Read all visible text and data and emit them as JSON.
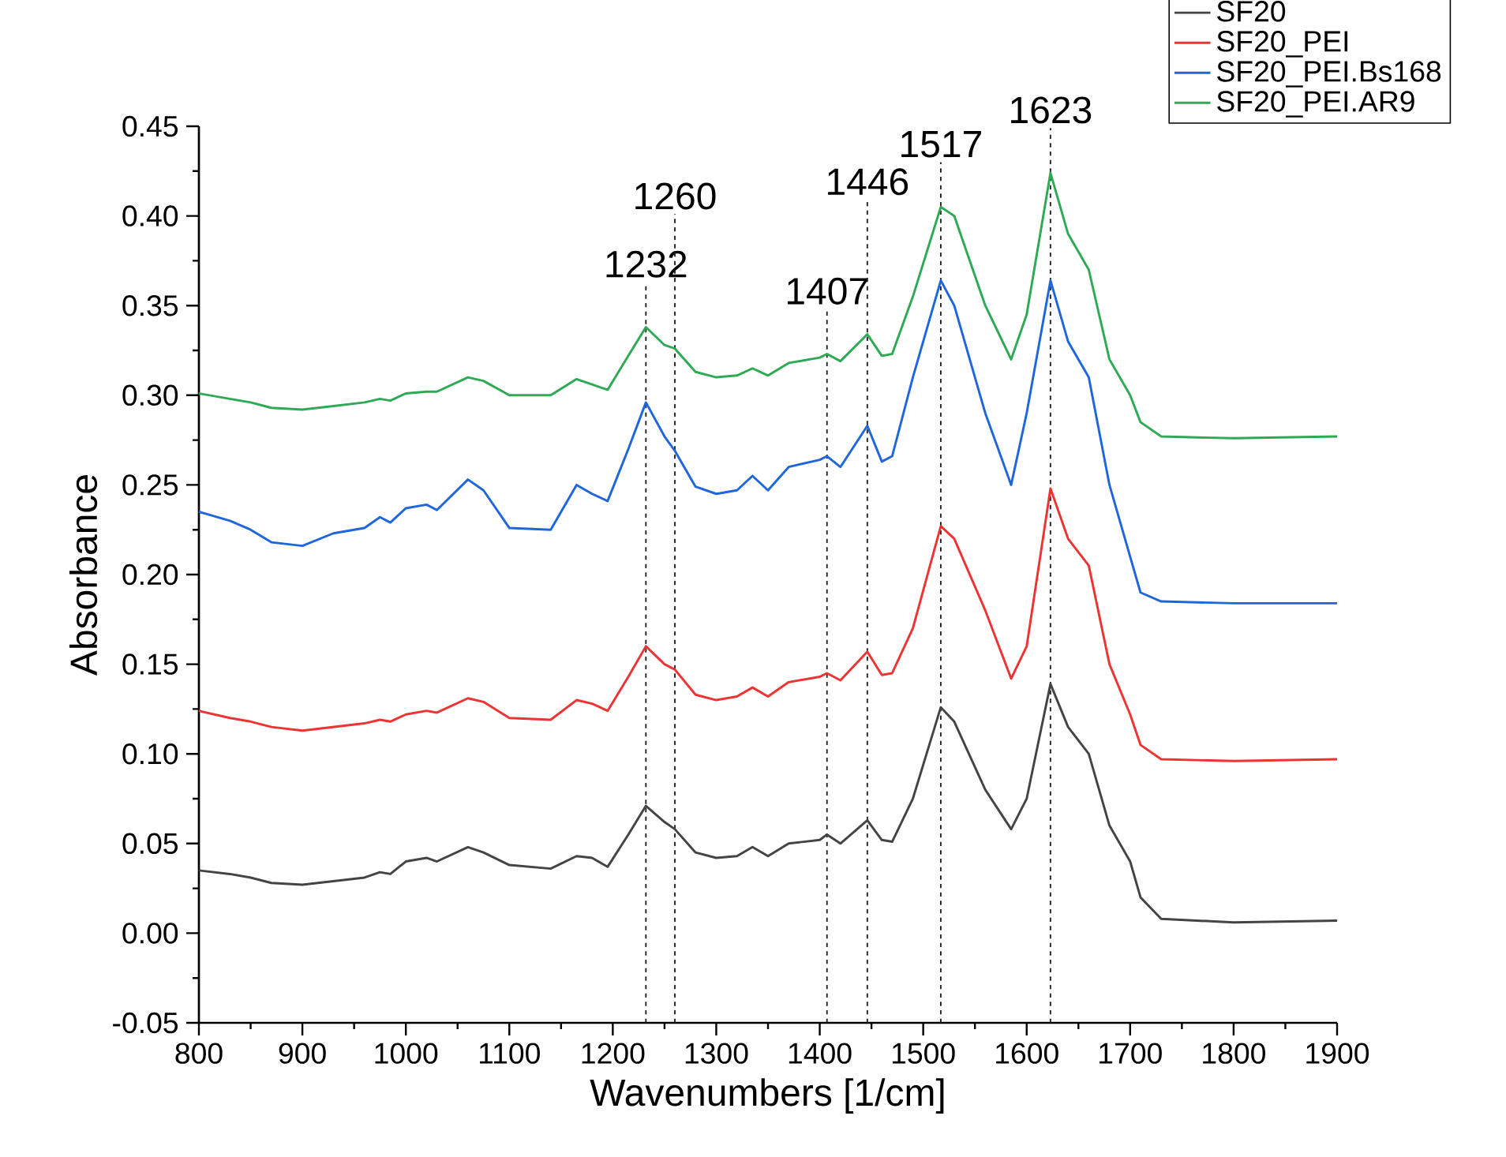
{
  "chart_data": {
    "type": "line",
    "xlabel": "Wavenumbers [1/cm]",
    "ylabel": "Absorbance",
    "x": [
      800,
      830,
      850,
      870,
      900,
      930,
      960,
      975,
      985,
      1000,
      1020,
      1030,
      1060,
      1075,
      1100,
      1140,
      1165,
      1180,
      1195,
      1215,
      1232,
      1250,
      1260,
      1280,
      1300,
      1320,
      1335,
      1350,
      1370,
      1400,
      1407,
      1420,
      1446,
      1460,
      1470,
      1490,
      1517,
      1530,
      1560,
      1585,
      1600,
      1623,
      1640,
      1660,
      1680,
      1700,
      1710,
      1730,
      1800,
      1900
    ],
    "series": [
      {
        "name": "SF20",
        "color": "#444444",
        "values": [
          0.035,
          0.033,
          0.031,
          0.028,
          0.027,
          0.029,
          0.031,
          0.034,
          0.033,
          0.04,
          0.042,
          0.04,
          0.048,
          0.045,
          0.038,
          0.036,
          0.043,
          0.042,
          0.037,
          0.055,
          0.071,
          0.062,
          0.058,
          0.045,
          0.042,
          0.043,
          0.048,
          0.043,
          0.05,
          0.052,
          0.055,
          0.05,
          0.063,
          0.052,
          0.051,
          0.075,
          0.126,
          0.118,
          0.08,
          0.058,
          0.075,
          0.139,
          0.115,
          0.1,
          0.06,
          0.04,
          0.02,
          0.008,
          0.006,
          0.007
        ]
      },
      {
        "name": "SF20_PEI",
        "color": "#ee3333",
        "values": [
          0.124,
          0.12,
          0.118,
          0.115,
          0.113,
          0.115,
          0.117,
          0.119,
          0.118,
          0.122,
          0.124,
          0.123,
          0.131,
          0.129,
          0.12,
          0.119,
          0.13,
          0.128,
          0.124,
          0.143,
          0.16,
          0.15,
          0.147,
          0.133,
          0.13,
          0.132,
          0.137,
          0.132,
          0.14,
          0.143,
          0.145,
          0.141,
          0.157,
          0.144,
          0.145,
          0.17,
          0.227,
          0.22,
          0.18,
          0.142,
          0.16,
          0.248,
          0.22,
          0.205,
          0.15,
          0.122,
          0.105,
          0.097,
          0.096,
          0.097
        ]
      },
      {
        "name": "SF20_PEI.Bs168",
        "color": "#1f66dd",
        "values": [
          0.235,
          0.23,
          0.225,
          0.218,
          0.216,
          0.223,
          0.226,
          0.232,
          0.229,
          0.237,
          0.239,
          0.236,
          0.253,
          0.247,
          0.226,
          0.225,
          0.25,
          0.245,
          0.241,
          0.27,
          0.296,
          0.277,
          0.269,
          0.249,
          0.245,
          0.247,
          0.255,
          0.247,
          0.26,
          0.264,
          0.266,
          0.26,
          0.283,
          0.263,
          0.266,
          0.31,
          0.364,
          0.35,
          0.29,
          0.25,
          0.29,
          0.364,
          0.33,
          0.31,
          0.25,
          0.21,
          0.19,
          0.185,
          0.184,
          0.184
        ]
      },
      {
        "name": "SF20_PEI.AR9",
        "color": "#2eaa55",
        "values": [
          0.301,
          0.298,
          0.296,
          0.293,
          0.292,
          0.294,
          0.296,
          0.298,
          0.297,
          0.301,
          0.302,
          0.302,
          0.31,
          0.308,
          0.3,
          0.3,
          0.309,
          0.306,
          0.303,
          0.322,
          0.338,
          0.328,
          0.326,
          0.313,
          0.31,
          0.311,
          0.315,
          0.311,
          0.318,
          0.321,
          0.323,
          0.319,
          0.334,
          0.322,
          0.323,
          0.355,
          0.405,
          0.4,
          0.35,
          0.32,
          0.345,
          0.424,
          0.39,
          0.37,
          0.32,
          0.3,
          0.285,
          0.277,
          0.276,
          0.277
        ]
      }
    ],
    "xlim": [
      800,
      1900
    ],
    "ylim": [
      -0.05,
      0.45
    ],
    "xticks": [
      800,
      900,
      1000,
      1100,
      1200,
      1300,
      1400,
      1500,
      1600,
      1700,
      1800,
      1900
    ],
    "yticks": [
      {
        "value": -0.05,
        "label": "-0.05"
      },
      {
        "value": 0,
        "label": "0.00"
      },
      {
        "value": 0.05,
        "label": "0.05"
      },
      {
        "value": 0.1,
        "label": "0.10"
      },
      {
        "value": 0.15,
        "label": "0.15"
      },
      {
        "value": 0.2,
        "label": "0.20"
      },
      {
        "value": 0.25,
        "label": "0.25"
      },
      {
        "value": 0.3,
        "label": "0.30"
      },
      {
        "value": 0.35,
        "label": "0.35"
      },
      {
        "value": 0.4,
        "label": "0.40"
      },
      {
        "value": 0.45,
        "label": "0.45"
      }
    ],
    "ref_lines": [
      {
        "axis": "x",
        "value": 1232,
        "label": "1232",
        "line_style": "dashed",
        "color": "#222222"
      },
      {
        "axis": "x",
        "value": 1260,
        "label": "1260",
        "line_style": "dashed",
        "color": "#222222"
      },
      {
        "axis": "x",
        "value": 1407,
        "label": "1407",
        "line_style": "dashed",
        "color": "#222222"
      },
      {
        "axis": "x",
        "value": 1446,
        "label": "1446",
        "line_style": "dashed",
        "color": "#222222"
      },
      {
        "axis": "x",
        "value": 1517,
        "label": "1517",
        "line_style": "dashed",
        "color": "#222222"
      },
      {
        "axis": "x",
        "value": 1623,
        "label": "1623",
        "line_style": "dashed",
        "color": "#222222"
      }
    ],
    "grid": false,
    "legend": "top right",
    "marker": "none",
    "line_style": "solid"
  }
}
